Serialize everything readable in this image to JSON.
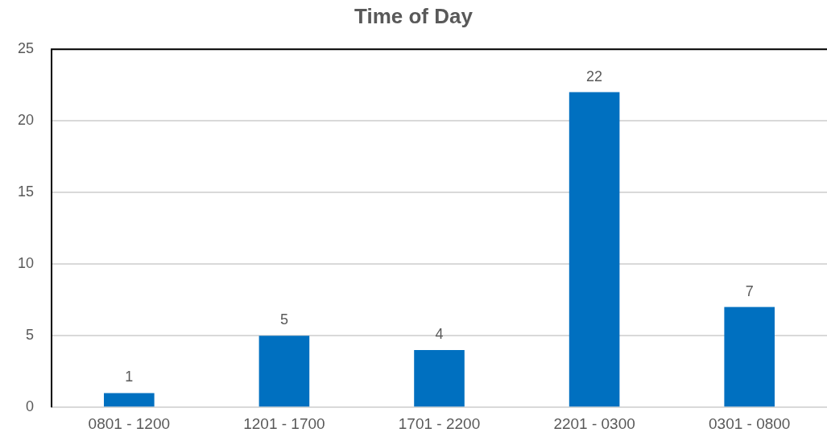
{
  "chart_data": {
    "type": "bar",
    "title": "Time of Day",
    "categories": [
      "0801 - 1200",
      "1201 - 1700",
      "1701 - 2200",
      "2201 - 0300",
      "0301 - 0800"
    ],
    "values": [
      1,
      5,
      4,
      22,
      7
    ],
    "color": "#0070c0",
    "ylim": [
      0,
      25
    ],
    "yticks": [
      0,
      5,
      10,
      15,
      20,
      25
    ],
    "grid": "y",
    "data_labels": true,
    "legend": false
  }
}
